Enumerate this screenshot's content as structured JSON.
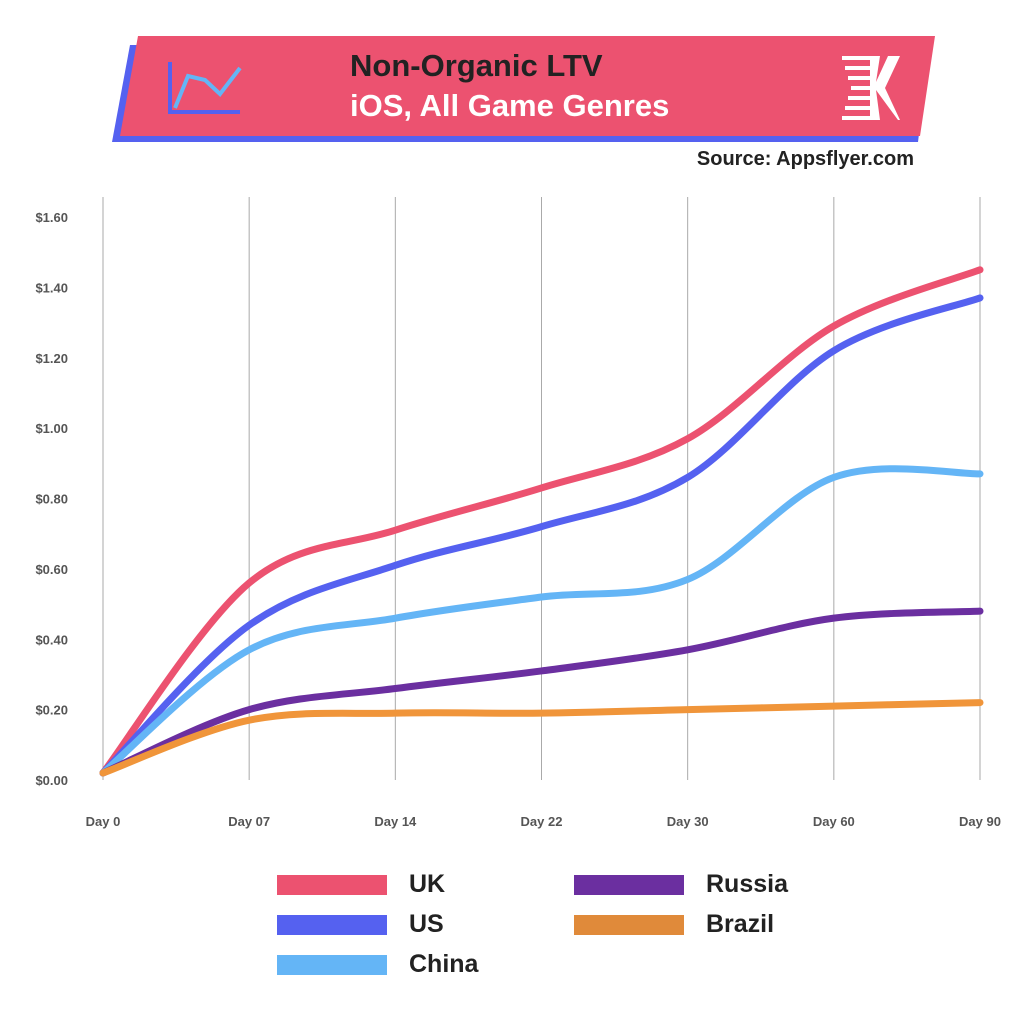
{
  "header": {
    "title_line1": "Non-Organic LTV",
    "title_line2": "iOS, All Game Genres",
    "source": "Source: Appsflyer.com",
    "logo_text": "K"
  },
  "colors": {
    "banner": "#EC5270",
    "banner_shadow": "#5561F0"
  },
  "chart_data": {
    "type": "line",
    "title": "Non-Organic LTV iOS, All Game Genres",
    "xlabel": "",
    "ylabel": "",
    "categories": [
      "Day 0",
      "Day 07",
      "Day 14",
      "Day 22",
      "Day 30",
      "Day 60",
      "Day 90"
    ],
    "y_ticks": [
      "$0.00",
      "$0.20",
      "$0.40",
      "$0.60",
      "$0.80",
      "$1.00",
      "$1.20",
      "$1.40",
      "$1.60"
    ],
    "ylim": [
      0,
      1.6
    ],
    "grid": "vertical",
    "legend_position": "bottom",
    "series": [
      {
        "name": "UK",
        "color": "#EC5270",
        "values": [
          0.02,
          0.56,
          0.71,
          0.83,
          0.97,
          1.29,
          1.45
        ]
      },
      {
        "name": "US",
        "color": "#5561F0",
        "values": [
          0.02,
          0.44,
          0.61,
          0.72,
          0.86,
          1.22,
          1.37
        ]
      },
      {
        "name": "China",
        "color": "#64B5F6",
        "values": [
          0.02,
          0.37,
          0.46,
          0.52,
          0.57,
          0.86,
          0.87
        ]
      },
      {
        "name": "Russia",
        "color": "#6B2FA0",
        "values": [
          0.02,
          0.2,
          0.26,
          0.31,
          0.37,
          0.46,
          0.48
        ]
      },
      {
        "name": "Brazil",
        "color": "#F0953A",
        "values": [
          0.02,
          0.17,
          0.19,
          0.19,
          0.2,
          0.21,
          0.22
        ]
      }
    ]
  }
}
